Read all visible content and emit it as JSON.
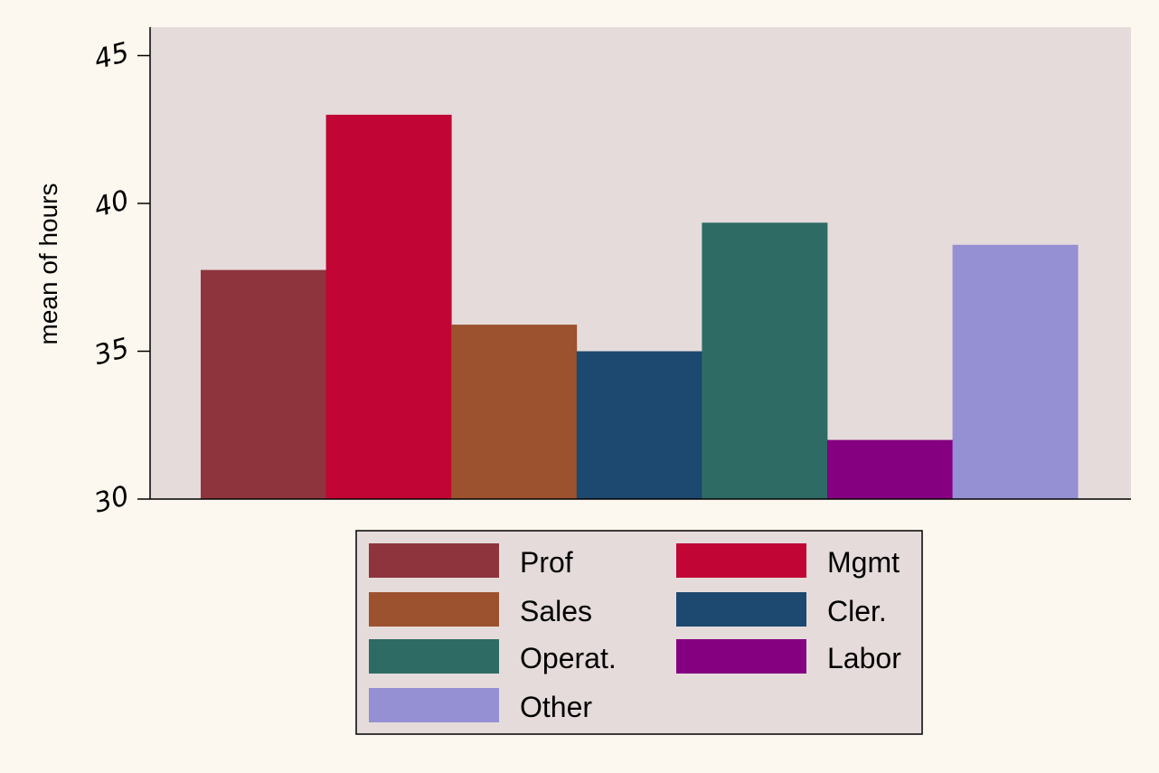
{
  "chart_data": {
    "type": "bar",
    "ylabel": "mean of hours",
    "ylim": [
      30,
      46
    ],
    "yticks": [
      30,
      35,
      40,
      45
    ],
    "grid": false,
    "legend_position": "bottom",
    "series": [
      {
        "name": "Prof",
        "value": 37.75,
        "color": "#8e343d"
      },
      {
        "name": "Mgmt",
        "value": 43.0,
        "color": "#c10534"
      },
      {
        "name": "Sales",
        "value": 35.9,
        "color": "#9c522e"
      },
      {
        "name": "Cler.",
        "value": 35.0,
        "color": "#1d486f"
      },
      {
        "name": "Operat.",
        "value": 39.35,
        "color": "#2e6b64"
      },
      {
        "name": "Labor",
        "value": 32.0,
        "color": "#850080"
      },
      {
        "name": "Other",
        "value": 38.6,
        "color": "#958fd3"
      }
    ],
    "plot_background": "#e5dbdb",
    "page_background": "#fdf8ef"
  }
}
